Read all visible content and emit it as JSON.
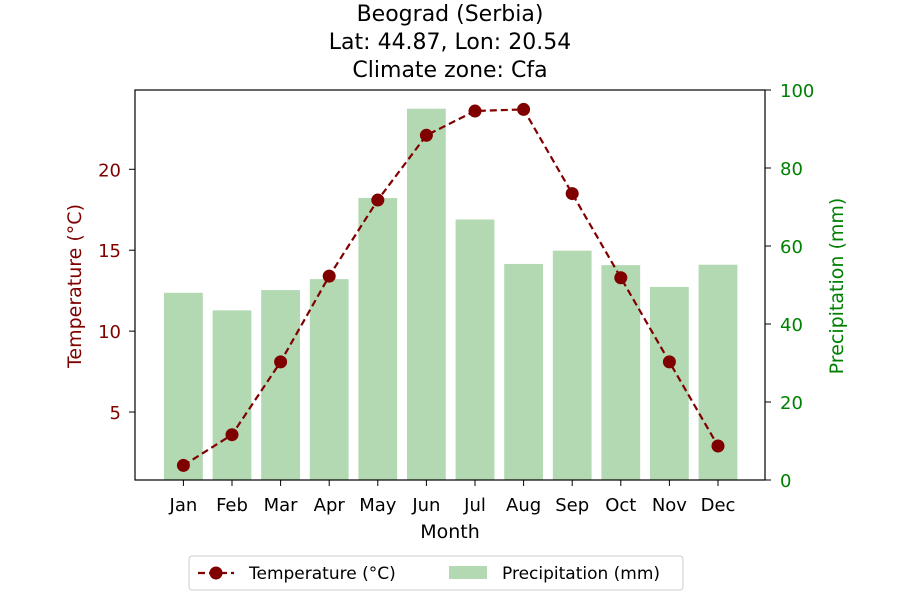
{
  "chart_data": {
    "type": "bar+line",
    "title_lines": [
      "Beograd (Serbia)",
      "Lat: 44.87, Lon: 20.54",
      "Climate zone: Cfa"
    ],
    "xlabel": "Month",
    "categories": [
      "Jan",
      "Feb",
      "Mar",
      "Apr",
      "May",
      "Jun",
      "Jul",
      "Aug",
      "Sep",
      "Oct",
      "Nov",
      "Dec"
    ],
    "y_left": {
      "label": "Temperature (°C)",
      "ticks": [
        5,
        10,
        15,
        20
      ],
      "color": "#800000"
    },
    "y_right": {
      "label": "Precipitation (mm)",
      "ticks": [
        0,
        20,
        40,
        60,
        80,
        100
      ],
      "ylim": [
        0,
        100
      ],
      "color": "#008000"
    },
    "series": [
      {
        "name": "Temperature (°C)",
        "kind": "line",
        "axis": "left",
        "color": "#800000",
        "style": "dashed-with-circle-markers",
        "values": [
          1.7,
          3.6,
          8.1,
          13.4,
          18.1,
          22.1,
          23.6,
          23.7,
          18.5,
          13.3,
          8.1,
          2.9
        ]
      },
      {
        "name": "Precipitation (mm)",
        "kind": "bar",
        "axis": "right",
        "color": "#b3d9b3",
        "values": [
          48,
          43.5,
          48.7,
          51.5,
          72.3,
          95.2,
          66.8,
          55.4,
          58.8,
          55.1,
          49.5,
          55.2
        ]
      }
    ],
    "legend": {
      "placement": "bottom-center",
      "entries": [
        "Temperature (°C)",
        "Precipitation (mm)"
      ]
    },
    "grid": false
  }
}
